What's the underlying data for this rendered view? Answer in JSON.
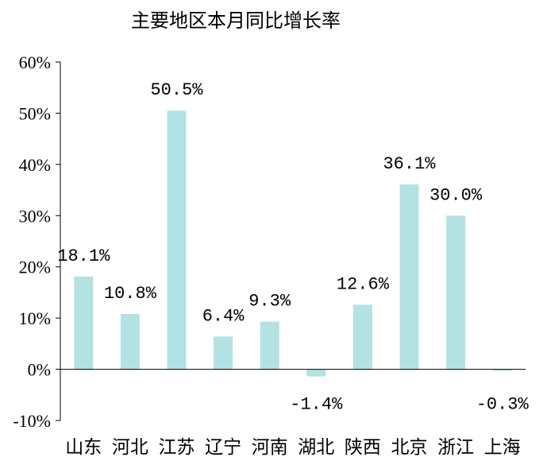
{
  "chart_data": {
    "type": "bar",
    "title": "主要地区本月同比增长率",
    "categories": [
      "山东",
      "河北",
      "江苏",
      "辽宁",
      "河南",
      "湖北",
      "陕西",
      "北京",
      "浙江",
      "上海"
    ],
    "values": [
      18.1,
      10.8,
      50.5,
      6.4,
      9.3,
      -1.4,
      12.6,
      36.1,
      30.0,
      -0.3
    ],
    "data_labels": [
      "18.1%",
      "10.8%",
      "50.5%",
      "6.4%",
      "9.3%",
      "-1.4%",
      "12.6%",
      "36.1%",
      "30.0%",
      "-0.3%"
    ],
    "yticks": [
      "60%",
      "50%",
      "40%",
      "30%",
      "20%",
      "10%",
      "0%",
      "-10%"
    ],
    "ylim": [
      -10,
      60
    ],
    "xlabel": "",
    "ylabel": "",
    "grid": false,
    "legend": "none",
    "bar_color": "#b2e2e2"
  }
}
